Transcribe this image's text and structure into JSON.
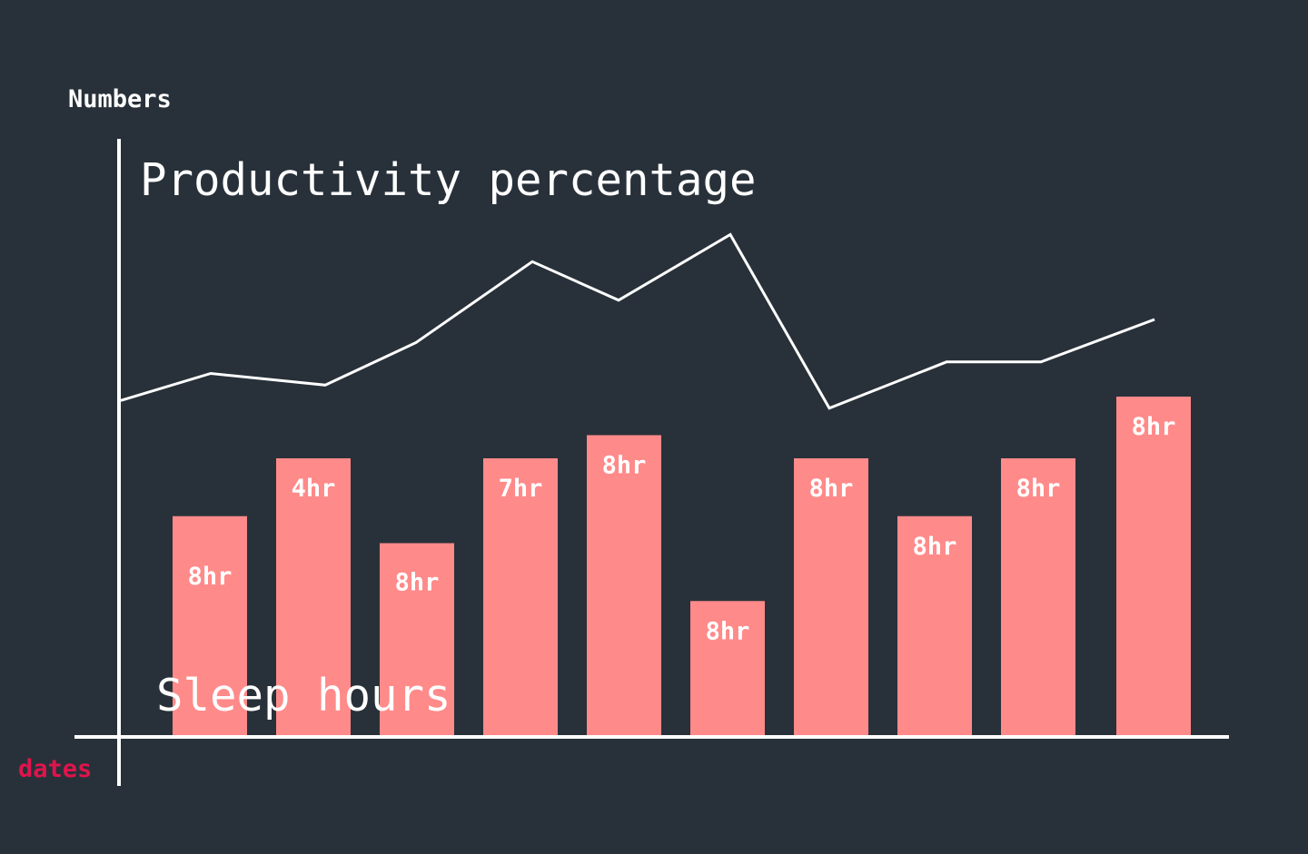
{
  "chart_data": {
    "type": "bar",
    "ylabel": "Numbers",
    "xlabel": "dates",
    "colors": {
      "background": "#283139",
      "axis": "#ffffff",
      "bar": "#ff8a8a",
      "line": "#ffffff",
      "xlabel": "#e0144c",
      "text": "#ffffff"
    },
    "series": [
      {
        "name": "Sleep hours",
        "type": "bar",
        "heights": [
          57,
          72,
          50,
          72,
          78,
          35,
          72,
          57,
          72,
          88
        ],
        "labels": [
          "8hr",
          "4hr",
          "8hr",
          "7hr",
          "8hr",
          "8hr",
          "8hr",
          "8hr",
          "8hr",
          "8hr"
        ]
      },
      {
        "name": "Productivity percentage",
        "type": "line",
        "values": [
          87,
          94,
          91,
          102,
          123,
          113,
          130,
          85,
          97,
          97,
          108
        ]
      }
    ]
  }
}
